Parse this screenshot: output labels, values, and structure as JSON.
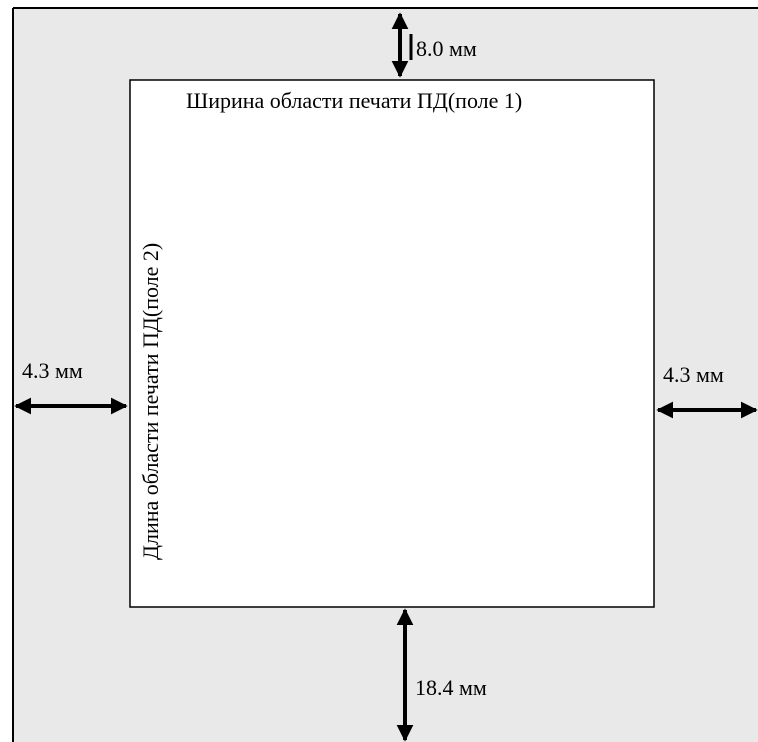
{
  "labels": {
    "margin_top": "8.0 мм",
    "margin_left": "4.3 мм",
    "margin_right": "4.3 мм",
    "margin_bottom": "18.4 мм",
    "print_width": "Ширина области печати ПД(поле 1)",
    "print_length": "Длина области печати ПД(поле 2)"
  },
  "colors": {
    "paper": "#e9e9e9",
    "print_area": "#ffffff",
    "outline": "#000000",
    "arrow": "#000000"
  }
}
